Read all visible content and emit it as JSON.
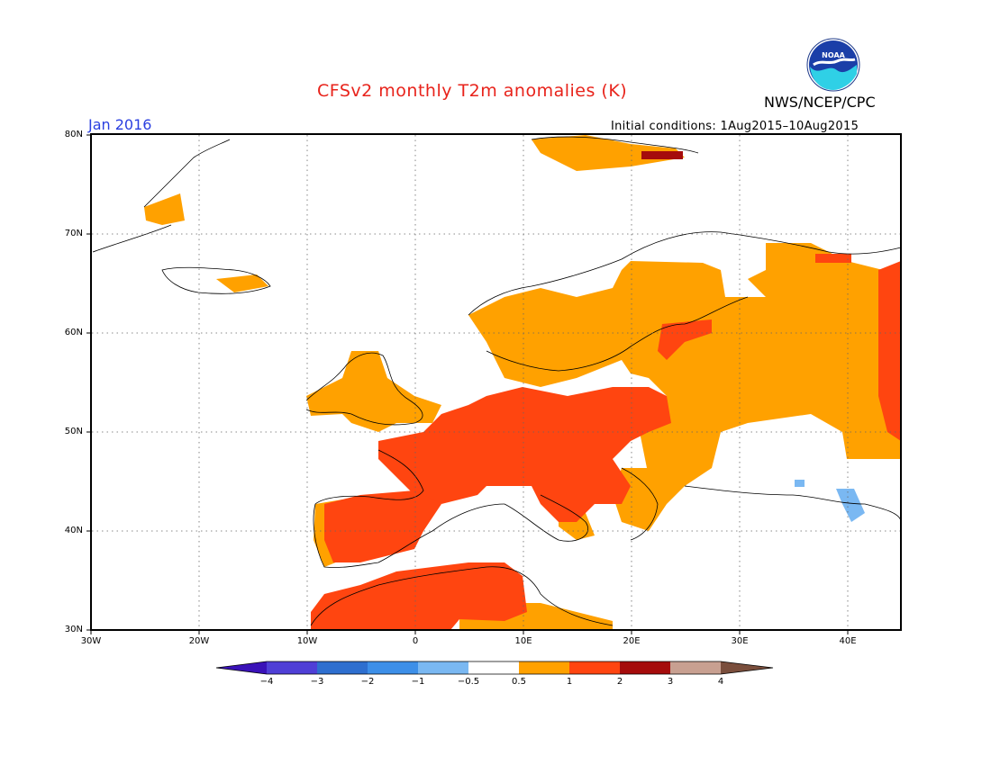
{
  "header": {
    "title": "CFSv2 monthly T2m anomalies (K)",
    "agency": "NWS/NCEP/CPC",
    "valid_month": "Jan 2016",
    "initial_conditions": "Initial conditions: 1Aug2015–10Aug2015"
  },
  "logo": {
    "text": "NOAA"
  },
  "axes": {
    "y_labels": [
      "80N",
      "70N",
      "60N",
      "50N",
      "40N",
      "30N"
    ],
    "x_labels": [
      "30W",
      "20W",
      "10W",
      "0",
      "10E",
      "20E",
      "30E",
      "40E"
    ]
  },
  "legend": {
    "tick_labels": [
      "−4",
      "−3",
      "−2",
      "−1",
      "−0.5",
      "0.5",
      "1",
      "2",
      "3",
      "4"
    ],
    "colors": [
      "#3a12b8",
      "#4f3fd6",
      "#2e6fcf",
      "#3d8fe8",
      "#7ab8f2",
      "#ffffff",
      "#ffa100",
      "#ff4510",
      "#a50c0c",
      "#c8a091",
      "#7a4e3c"
    ]
  },
  "colors": {
    "title": "#e8231b",
    "month": "#2a3fe0"
  }
}
